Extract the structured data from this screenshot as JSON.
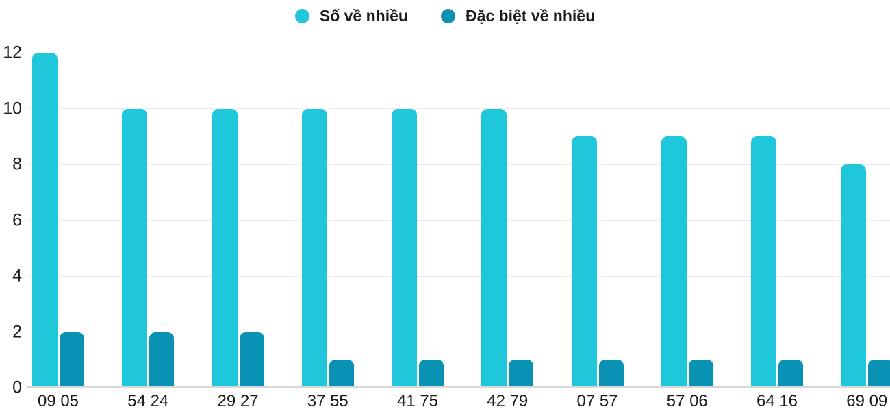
{
  "chart_data": {
    "type": "bar",
    "title": "",
    "xlabel": "",
    "ylabel": "",
    "categories": [
      "09 05",
      "54 24",
      "29 27",
      "37 55",
      "41 75",
      "42 79",
      "07 57",
      "57 06",
      "64 16",
      "69 09"
    ],
    "series": [
      {
        "name": "Số về nhiều",
        "color": "#1FC7DB",
        "values": [
          12,
          10,
          10,
          10,
          10,
          10,
          9,
          9,
          9,
          8
        ]
      },
      {
        "name": "Đặc biệt về nhiều",
        "color": "#0992B4",
        "values": [
          2,
          2,
          2,
          1,
          1,
          1,
          1,
          1,
          1,
          1
        ]
      }
    ],
    "ylim": [
      0,
      12
    ],
    "yticks": [
      0,
      2,
      4,
      6,
      8,
      10,
      12
    ],
    "grid": true,
    "legend_position": "top-center",
    "colors": {
      "grid_line": "#ECECEC",
      "baseline": "#D8D8D8",
      "text": "#1C1C1C",
      "background": "#FFFFFF"
    }
  }
}
